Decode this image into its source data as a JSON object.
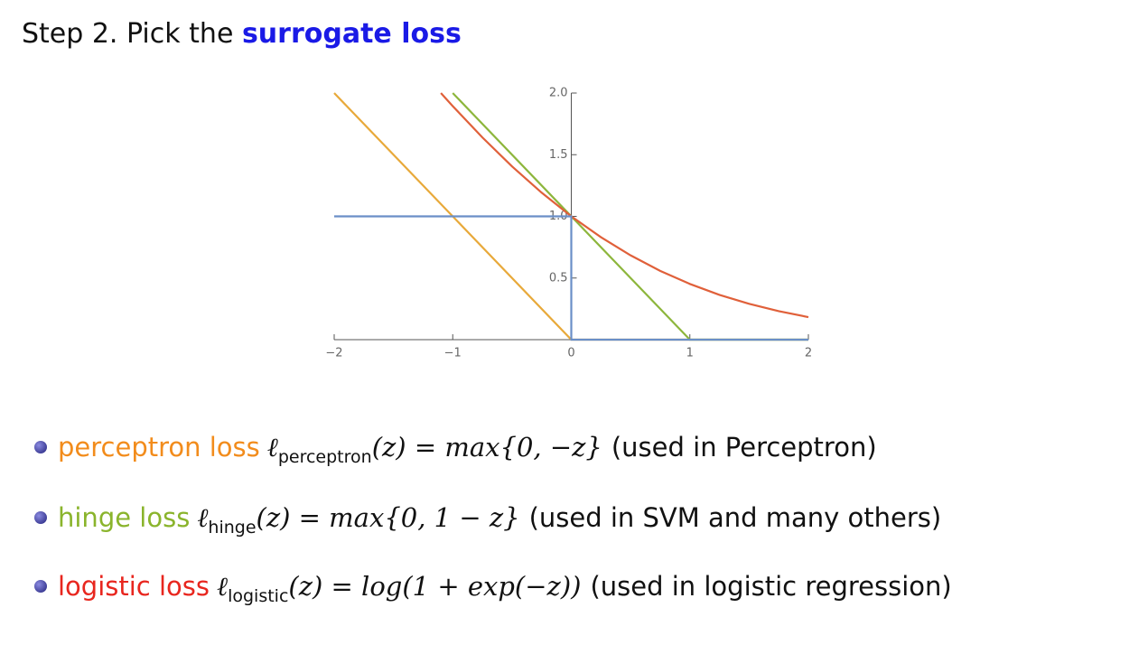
{
  "header": {
    "text": "Step 2. Pick the",
    "highlight": "surrogate loss"
  },
  "chart_data": {
    "type": "line",
    "xlim": [
      -2,
      2
    ],
    "ylim": [
      0,
      2
    ],
    "xticks": [
      {
        "value": -2,
        "label": "−2"
      },
      {
        "value": -1,
        "label": "−1"
      },
      0,
      1,
      2
    ],
    "yticks": [
      0.5,
      {
        "value": 1,
        "label": "1.0"
      },
      1.5,
      {
        "value": 2,
        "label": "2.0"
      }
    ],
    "series": [
      {
        "color": "#e8a93a",
        "x": [
          -2,
          0,
          2
        ],
        "values": [
          2,
          0,
          0
        ]
      },
      {
        "color": "#8db63c",
        "x": [
          -1,
          1,
          2
        ],
        "values": [
          2,
          0,
          0
        ]
      },
      {
        "color": "#e0603a",
        "x": [
          -1.1,
          -1,
          -0.75,
          -0.5,
          -0.25,
          0,
          0.25,
          0.5,
          0.75,
          1,
          1.25,
          1.5,
          1.75,
          2
        ],
        "values": [
          2.0,
          1.894,
          1.64,
          1.405,
          1.192,
          1,
          0.831,
          0.684,
          0.558,
          0.452,
          0.363,
          0.291,
          0.231,
          0.183
        ]
      },
      {
        "color": "#6a8fc7",
        "x": [
          -2,
          0,
          0,
          2
        ],
        "values": [
          1,
          1,
          0,
          0
        ]
      }
    ]
  },
  "bullets": [
    {
      "term": "perceptron loss",
      "color": "#f28c1c",
      "symbol": "ℓ",
      "subscript": "perceptron",
      "formula": "(z) = max{0, −z}",
      "note": "(used in Perceptron)"
    },
    {
      "term": "hinge loss",
      "color": "#8ab42c",
      "symbol": "ℓ",
      "subscript": "hinge",
      "formula": "(z) = max{0, 1 − z}",
      "note": "(used in SVM and many others)"
    },
    {
      "term": "logistic loss",
      "color": "#e8261e",
      "symbol": "ℓ",
      "subscript": "logistic",
      "formula": "(z) = log(1 + exp(−z))",
      "note": "(used in logistic regression)"
    }
  ]
}
